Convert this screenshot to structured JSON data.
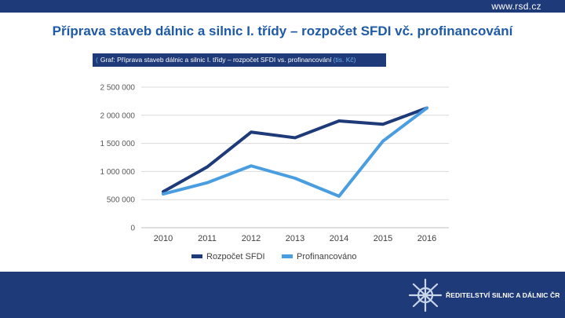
{
  "header": {
    "site_url": "www.rsd.cz"
  },
  "page_title": "Příprava staveb dálnic a silnic I. třídy – rozpočet SFDI vč. profinancování",
  "chart_header": {
    "lead": "(",
    "text": "Graf: Příprava staveb dálnic a silnic I. třídy – rozpočet SFDI vs. profinancování",
    "unit": "(tis. Kč)"
  },
  "footer": {
    "logo_text": "ŘEDITELSTVÍ SILNIC A DÁLNIC ČR"
  },
  "colors": {
    "navy": "#1f3a78",
    "series_dark": "#1f3a78",
    "series_light": "#4a9ee0"
  },
  "chart_data": {
    "type": "line",
    "categories": [
      "2010",
      "2011",
      "2012",
      "2013",
      "2014",
      "2015",
      "2016"
    ],
    "y_ticks": [
      0,
      500000,
      1000000,
      1500000,
      2000000,
      2500000
    ],
    "y_tick_labels": [
      "0",
      "500 000",
      "1 000 000",
      "1 500 000",
      "2 000 000",
      "2 500 000"
    ],
    "ylim": [
      0,
      2500000
    ],
    "grid": true,
    "legend_position": "bottom",
    "series": [
      {
        "name": "Rozpočet SFDI",
        "color": "#1f3a78",
        "values": [
          640000,
          1080000,
          1700000,
          1600000,
          1900000,
          1840000,
          2130000
        ]
      },
      {
        "name": "Profinancováno",
        "color": "#4a9ee0",
        "values": [
          600000,
          800000,
          1100000,
          880000,
          560000,
          1540000,
          2130000
        ]
      }
    ]
  }
}
